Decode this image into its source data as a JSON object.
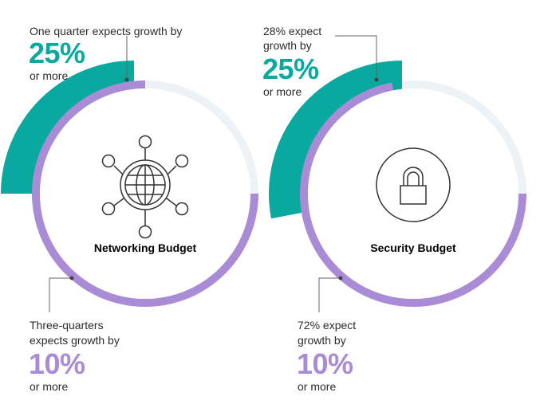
{
  "colors": {
    "teal": "#0aa99f",
    "purple": "#a98bd6",
    "track": "#edf2f6",
    "leader": "#666666"
  },
  "icons": [
    "network-globe-icon",
    "padlock-icon"
  ],
  "networking": {
    "center_label": "Networking Budget",
    "top_callout": {
      "lead": "One quarter expects growth by",
      "value": "25%",
      "tail": "or more"
    },
    "bottom_callout": {
      "lead_line1": "Three-quarters",
      "lead_line2": "expects growth by",
      "value": "10%",
      "tail": "or more"
    }
  },
  "security": {
    "center_label": "Security Budget",
    "top_callout": {
      "lead_line1": "28% expect",
      "lead_line2": "growth by",
      "value": "25%",
      "tail": "or more"
    },
    "bottom_callout": {
      "lead_line1": "72% expect",
      "lead_line2": "growth by",
      "value": "10%",
      "tail": "or more"
    }
  },
  "chart_data": [
    {
      "type": "pie",
      "title": "Networking Budget",
      "series": [
        {
          "name": "Expects growth by 25% or more",
          "values": [
            25
          ]
        },
        {
          "name": "Expects growth by 10% or more",
          "values": [
            75
          ]
        }
      ]
    },
    {
      "type": "pie",
      "title": "Security Budget",
      "series": [
        {
          "name": "Expect growth by 25% or more",
          "values": [
            28
          ]
        },
        {
          "name": "Expect growth by 10% or more",
          "values": [
            72
          ]
        }
      ]
    }
  ]
}
